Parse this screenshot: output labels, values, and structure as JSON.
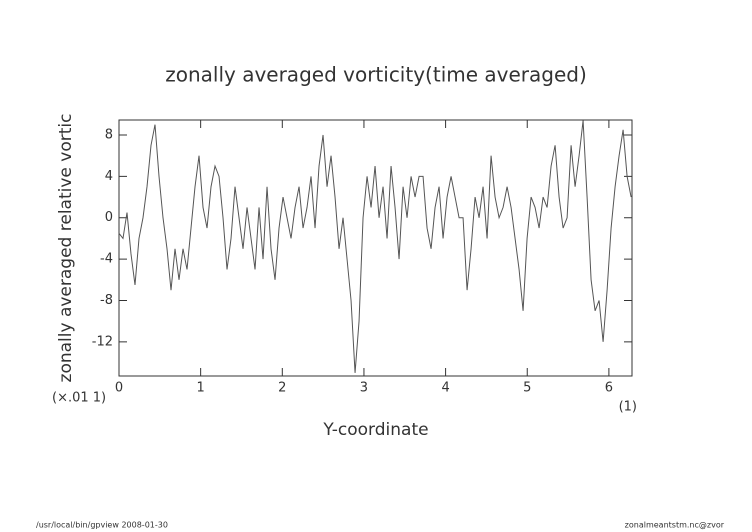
{
  "chart_data": {
    "type": "line",
    "title": "zonally averaged vorticity(time averaged)",
    "x_label": "Y-coordinate",
    "y_label": "zonally averaged relative vortic",
    "y_unit": "(×.01 1)",
    "x_unit": "(1)",
    "footer_left": "/usr/local/bin/gpview   2008-01-30",
    "footer_right": "zonalmeantstm.nc@zvor",
    "xlim": [
      0,
      6.283
    ],
    "ylim": [
      -15.3,
      9.45
    ],
    "xticks": [
      0,
      1,
      2,
      3,
      4,
      5,
      6
    ],
    "yticks": [
      -12,
      -8,
      -4,
      0,
      4,
      8
    ],
    "grid": false,
    "color": "#555555",
    "x": [
      0,
      0.049,
      0.098,
      0.147,
      0.196,
      0.245,
      0.294,
      0.343,
      0.392,
      0.441,
      0.49,
      0.539,
      0.588,
      0.637,
      0.686,
      0.735,
      0.784,
      0.833,
      0.882,
      0.931,
      0.98,
      1.029,
      1.078,
      1.127,
      1.176,
      1.225,
      1.274,
      1.323,
      1.372,
      1.421,
      1.47,
      1.519,
      1.568,
      1.617,
      1.666,
      1.715,
      1.764,
      1.813,
      1.862,
      1.911,
      1.96,
      2.009,
      2.058,
      2.107,
      2.156,
      2.205,
      2.254,
      2.303,
      2.352,
      2.401,
      2.45,
      2.499,
      2.548,
      2.597,
      2.646,
      2.695,
      2.744,
      2.793,
      2.842,
      2.891,
      2.94,
      2.989,
      3.038,
      3.087,
      3.136,
      3.185,
      3.234,
      3.283,
      3.332,
      3.381,
      3.43,
      3.479,
      3.528,
      3.577,
      3.626,
      3.675,
      3.724,
      3.773,
      3.822,
      3.871,
      3.92,
      3.969,
      4.018,
      4.067,
      4.116,
      4.165,
      4.214,
      4.263,
      4.312,
      4.361,
      4.41,
      4.459,
      4.508,
      4.557,
      4.606,
      4.655,
      4.704,
      4.753,
      4.802,
      4.851,
      4.9,
      4.949,
      4.998,
      5.047,
      5.096,
      5.145,
      5.194,
      5.243,
      5.292,
      5.341,
      5.39,
      5.439,
      5.488,
      5.537,
      5.586,
      5.635,
      5.684,
      5.733,
      5.782,
      5.831,
      5.88,
      5.929,
      5.978,
      6.027,
      6.076,
      6.125,
      6.174,
      6.223,
      6.272
    ],
    "values": [
      -1.5,
      -2,
      0.5,
      -3.5,
      -6.5,
      -2,
      0,
      3,
      7,
      9,
      4,
      0,
      -3,
      -7,
      -3,
      -6,
      -3,
      -5,
      -1,
      3,
      6,
      1,
      -1,
      3,
      5,
      4,
      0,
      -5,
      -2,
      3,
      0,
      -3,
      1,
      -2,
      -5,
      1,
      -4,
      3,
      -3,
      -6,
      -1,
      2,
      0,
      -2,
      1,
      3,
      -1,
      1,
      4,
      -1,
      5,
      8,
      3,
      6,
      2,
      -3,
      0,
      -4,
      -8,
      -15,
      -10,
      0,
      4,
      1,
      5,
      0,
      3,
      -2,
      5,
      1,
      -4,
      3,
      0,
      4,
      2,
      4,
      4,
      -1,
      -3,
      1,
      3,
      -2,
      2,
      4,
      2,
      0,
      0,
      -7,
      -3,
      2,
      0,
      3,
      -2,
      6,
      2,
      0,
      1,
      3,
      1,
      -2,
      -5,
      -9,
      -2,
      2,
      1,
      -1,
      2,
      1,
      5,
      7,
      2,
      -1,
      0,
      7,
      3,
      6,
      9.4,
      2,
      -6,
      -9,
      -8,
      -12,
      -7,
      -1,
      3,
      6,
      8.5,
      4,
      2
    ]
  }
}
